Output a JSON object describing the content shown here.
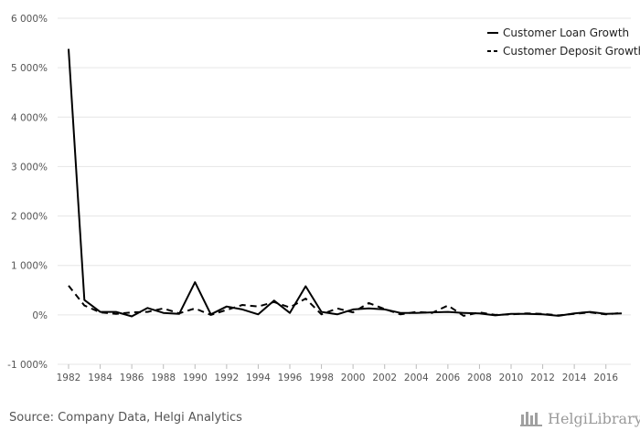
{
  "chart_data": {
    "type": "line",
    "x": [
      1982,
      1983,
      1984,
      1985,
      1986,
      1987,
      1988,
      1989,
      1990,
      1991,
      1992,
      1993,
      1994,
      1995,
      1996,
      1997,
      1998,
      1999,
      2000,
      2001,
      2002,
      2003,
      2004,
      2005,
      2006,
      2007,
      2008,
      2009,
      2010,
      2011,
      2012,
      2013,
      2014,
      2015,
      2016,
      2017
    ],
    "x_ticks": [
      "1982",
      "1984",
      "1986",
      "1988",
      "1990",
      "1992",
      "1994",
      "1996",
      "1998",
      "2000",
      "2002",
      "2004",
      "2006",
      "2008",
      "2010",
      "2012",
      "2014",
      "2016"
    ],
    "y_ticks": [
      "6 000%",
      "5 000%",
      "4 000%",
      "3 000%",
      "2 000%",
      "1 000%",
      "0%",
      "-1 000%"
    ],
    "ylim": [
      -1000,
      6000
    ],
    "grid": true,
    "legend_position": "top-right",
    "series": [
      {
        "name": "Customer Loan Growth",
        "style": "solid",
        "color": "#000000",
        "values": [
          5380,
          300,
          60,
          60,
          -30,
          140,
          40,
          20,
          660,
          10,
          170,
          110,
          10,
          290,
          40,
          580,
          60,
          10,
          110,
          130,
          110,
          40,
          40,
          50,
          60,
          40,
          30,
          -10,
          20,
          20,
          10,
          -20,
          30,
          60,
          20,
          30
        ]
      },
      {
        "name": "Customer Deposit Growth",
        "style": "dashed",
        "color": "#000000",
        "values": [
          590,
          190,
          50,
          20,
          50,
          60,
          130,
          30,
          130,
          0,
          100,
          200,
          170,
          260,
          150,
          330,
          10,
          130,
          50,
          240,
          120,
          10,
          60,
          40,
          190,
          -20,
          50,
          0,
          10,
          30,
          20,
          -10,
          20,
          50,
          10,
          40
        ]
      }
    ]
  },
  "footer": {
    "source": "Source: Company Data, Helgi Analytics",
    "brand": "HelgiLibrary"
  },
  "colors": {
    "grid": "#e6e6e6",
    "axis_text": "#555555",
    "brand": "#9a9a9a"
  }
}
